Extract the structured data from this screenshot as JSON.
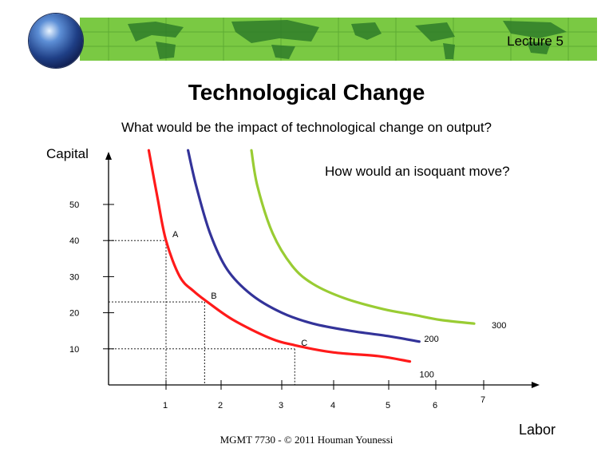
{
  "header": {
    "lecture": "Lecture 5"
  },
  "slide": {
    "title": "Technological Change",
    "subtitle": "What would be the impact of technological change on output?",
    "question": "How would an isoquant move?",
    "footer": "MGMT 7730 - © 2011 Houman Younessi"
  },
  "chart_data": {
    "type": "line",
    "xlabel": "Labor",
    "ylabel": "Capital",
    "x_ticks": [
      "1",
      "2",
      "3",
      "4",
      "5",
      "6",
      "7"
    ],
    "y_ticks": [
      "10",
      "20",
      "30",
      "40",
      "50"
    ],
    "series": [
      {
        "name": "100",
        "color": "#ff1a1a",
        "x": [
          0.7,
          0.85,
          1.0,
          1.25,
          1.5,
          1.75,
          2.2,
          2.8,
          3.25,
          4.0,
          4.8,
          5.45
        ],
        "y": [
          65,
          52,
          40,
          30,
          26,
          23,
          18,
          13,
          11,
          9,
          8,
          6.5
        ]
      },
      {
        "name": "200",
        "color": "#333399",
        "x": [
          1.4,
          1.55,
          1.8,
          2.1,
          2.5,
          3.0,
          3.6,
          4.3,
          5.0,
          5.65
        ],
        "y": [
          65,
          55,
          42,
          32,
          25,
          20,
          17,
          15,
          13.5,
          12
        ]
      },
      {
        "name": "300",
        "color": "#99cc33",
        "x": [
          2.5,
          2.6,
          2.85,
          3.2,
          3.6,
          4.2,
          4.9,
          5.5,
          6.1,
          6.8
        ],
        "y": [
          65,
          55,
          42,
          33,
          28,
          24,
          21,
          19.5,
          18,
          17
        ]
      }
    ],
    "points": [
      {
        "label": "A",
        "x": 1.0,
        "y": 40
      },
      {
        "label": "B",
        "x": 1.7,
        "y": 23
      },
      {
        "label": "C",
        "x": 3.25,
        "y": 10
      }
    ],
    "legend": "curve-end labels"
  }
}
